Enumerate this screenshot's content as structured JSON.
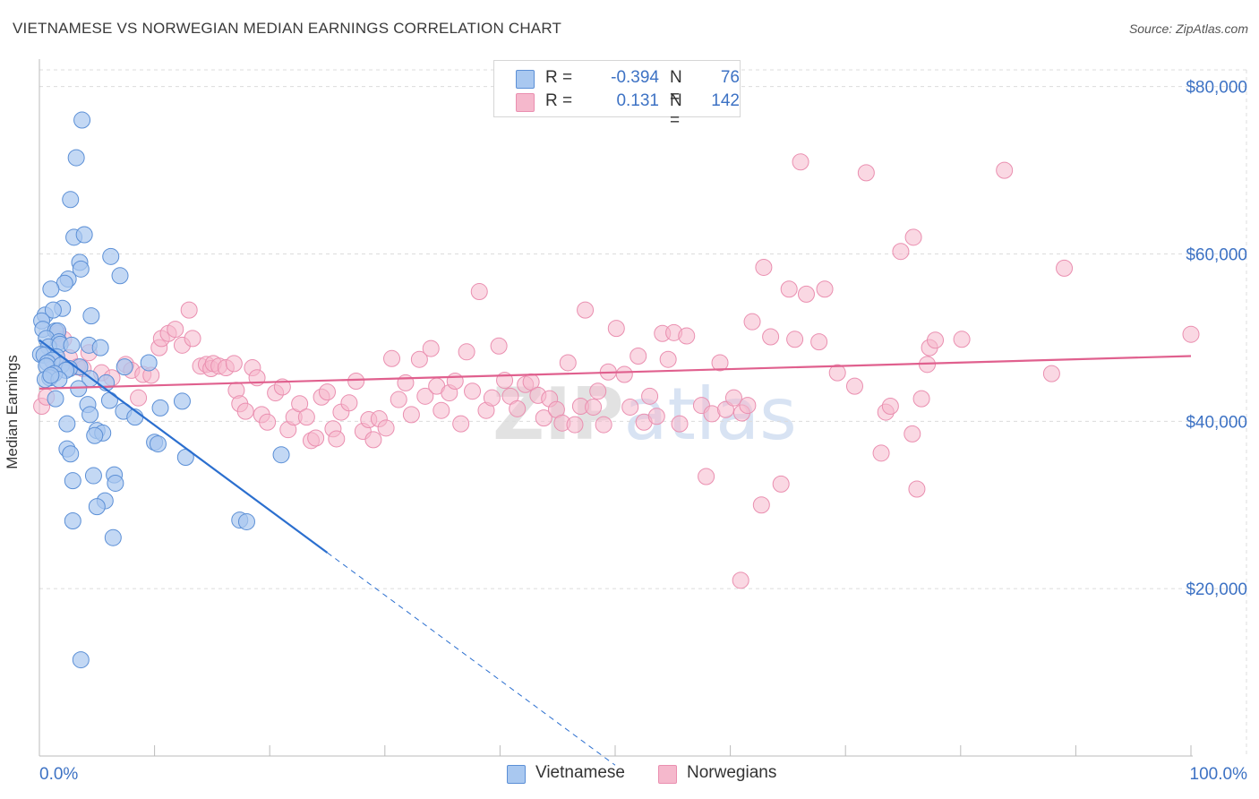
{
  "title": "VIETNAMESE VS NORWEGIAN MEDIAN EARNINGS CORRELATION CHART",
  "source": "Source: ZipAtlas.com",
  "watermark": "ZIPatlas",
  "legend": {
    "rows": [
      {
        "r_label": "R =",
        "r_value": "-0.394",
        "n_label": "N =",
        "n_value": "76"
      },
      {
        "r_label": "R =",
        "r_value": "0.131",
        "n_label": "N =",
        "n_value": "142"
      }
    ]
  },
  "bottom_legend": [
    "Vietnamese",
    "Norwegians"
  ],
  "colors": {
    "vietnamese_fill": "#a9c8f0",
    "vietnamese_stroke": "#5b8fd6",
    "vietnamese_line": "#2b6fcf",
    "norwegian_fill": "#f5b8cc",
    "norwegian_stroke": "#ea8fb0",
    "norwegian_line": "#e0608e",
    "axis_text": "#3d72c4",
    "grid": "#dcdcdc"
  },
  "chart_data": {
    "type": "scatter",
    "title": "VIETNAMESE VS NORWEGIAN MEDIAN EARNINGS CORRELATION CHART",
    "xlabel": "",
    "ylabel": "Median Earnings",
    "xlim": [
      0,
      100
    ],
    "ylim": [
      0,
      82000
    ],
    "x_tick_labels": [
      "0.0%",
      "100.0%"
    ],
    "y_ticks": [
      20000,
      40000,
      60000,
      80000
    ],
    "y_tick_labels": [
      "$20,000",
      "$40,000",
      "$60,000",
      "$80,000"
    ],
    "grid": true,
    "series": [
      {
        "name": "Vietnamese",
        "r": -0.394,
        "n": 76,
        "trend": {
          "x0": 0,
          "y0": 49700,
          "x1": 25,
          "y1": 24300,
          "dashed_to_x": 50
        },
        "points": [
          [
            3.7,
            76000
          ],
          [
            3.2,
            71500
          ],
          [
            2.7,
            66500
          ],
          [
            3.0,
            62000
          ],
          [
            3.9,
            62300
          ],
          [
            6.2,
            59700
          ],
          [
            3.5,
            59000
          ],
          [
            3.6,
            58200
          ],
          [
            7.0,
            57400
          ],
          [
            2.5,
            57000
          ],
          [
            2.2,
            56500
          ],
          [
            1.0,
            55800
          ],
          [
            0.5,
            52700
          ],
          [
            2.0,
            53500
          ],
          [
            1.2,
            53300
          ],
          [
            4.5,
            52600
          ],
          [
            0.2,
            52000
          ],
          [
            0.3,
            51000
          ],
          [
            1.4,
            50800
          ],
          [
            1.6,
            50800
          ],
          [
            0.6,
            49900
          ],
          [
            1.7,
            49500
          ],
          [
            0.8,
            48900
          ],
          [
            1.8,
            49200
          ],
          [
            2.8,
            49100
          ],
          [
            4.3,
            49100
          ],
          [
            5.3,
            48800
          ],
          [
            0.1,
            48000
          ],
          [
            0.4,
            47900
          ],
          [
            1.5,
            47700
          ],
          [
            1.1,
            47300
          ],
          [
            0.7,
            47000
          ],
          [
            1.9,
            46700
          ],
          [
            0.6,
            46600
          ],
          [
            3.5,
            46500
          ],
          [
            2.6,
            46300
          ],
          [
            7.4,
            46500
          ],
          [
            2.3,
            46100
          ],
          [
            1.3,
            45700
          ],
          [
            0.9,
            45200
          ],
          [
            0.5,
            45000
          ],
          [
            1.7,
            45000
          ],
          [
            4.4,
            45100
          ],
          [
            5.8,
            44600
          ],
          [
            3.4,
            43900
          ],
          [
            9.5,
            47000
          ],
          [
            1.4,
            42700
          ],
          [
            6.1,
            42500
          ],
          [
            4.2,
            42000
          ],
          [
            12.4,
            42400
          ],
          [
            10.5,
            41600
          ],
          [
            7.3,
            41200
          ],
          [
            4.4,
            40800
          ],
          [
            8.3,
            40500
          ],
          [
            2.4,
            39700
          ],
          [
            5.0,
            38900
          ],
          [
            5.5,
            38600
          ],
          [
            4.8,
            38300
          ],
          [
            10.0,
            37500
          ],
          [
            10.3,
            37300
          ],
          [
            2.4,
            36700
          ],
          [
            2.7,
            36100
          ],
          [
            12.7,
            35700
          ],
          [
            21.0,
            36000
          ],
          [
            6.5,
            33600
          ],
          [
            4.7,
            33500
          ],
          [
            6.6,
            32600
          ],
          [
            2.9,
            32900
          ],
          [
            5.7,
            30500
          ],
          [
            5.0,
            29800
          ],
          [
            2.9,
            28100
          ],
          [
            17.4,
            28200
          ],
          [
            18.0,
            28000
          ],
          [
            6.4,
            26100
          ],
          [
            3.6,
            11500
          ],
          [
            1.0,
            45500
          ]
        ]
      },
      {
        "name": "Norwegians",
        "r": 0.131,
        "n": 142,
        "trend": {
          "x0": 0,
          "y0": 43900,
          "x1": 100,
          "y1": 47800
        },
        "points": [
          [
            0.2,
            41800
          ],
          [
            0.6,
            42900
          ],
          [
            1.3,
            46800
          ],
          [
            1.6,
            50500
          ],
          [
            2.1,
            49800
          ],
          [
            2.6,
            47600
          ],
          [
            3.3,
            46500
          ],
          [
            3.8,
            46300
          ],
          [
            4.3,
            48200
          ],
          [
            5.4,
            45800
          ],
          [
            6.3,
            45200
          ],
          [
            7.5,
            46800
          ],
          [
            8.0,
            46100
          ],
          [
            8.6,
            42800
          ],
          [
            9.0,
            45600
          ],
          [
            9.7,
            45500
          ],
          [
            10.4,
            48800
          ],
          [
            10.6,
            49900
          ],
          [
            11.2,
            50500
          ],
          [
            11.8,
            51000
          ],
          [
            12.4,
            49100
          ],
          [
            13.0,
            53300
          ],
          [
            13.3,
            49900
          ],
          [
            14.0,
            46600
          ],
          [
            14.5,
            46800
          ],
          [
            14.9,
            46300
          ],
          [
            15.1,
            46900
          ],
          [
            15.6,
            46600
          ],
          [
            16.2,
            46400
          ],
          [
            16.9,
            46900
          ],
          [
            17.1,
            43700
          ],
          [
            17.4,
            42100
          ],
          [
            17.9,
            41200
          ],
          [
            18.5,
            46400
          ],
          [
            18.9,
            45200
          ],
          [
            19.3,
            40800
          ],
          [
            19.8,
            39900
          ],
          [
            20.5,
            43400
          ],
          [
            21.1,
            44100
          ],
          [
            21.6,
            39000
          ],
          [
            22.1,
            40500
          ],
          [
            22.6,
            42100
          ],
          [
            23.2,
            40500
          ],
          [
            23.6,
            37700
          ],
          [
            24.0,
            38000
          ],
          [
            24.5,
            42900
          ],
          [
            25.0,
            43500
          ],
          [
            25.5,
            39100
          ],
          [
            25.8,
            37900
          ],
          [
            26.2,
            41100
          ],
          [
            26.9,
            42200
          ],
          [
            27.5,
            44800
          ],
          [
            28.1,
            38800
          ],
          [
            28.6,
            40200
          ],
          [
            29.0,
            37800
          ],
          [
            29.5,
            40300
          ],
          [
            30.1,
            39200
          ],
          [
            30.6,
            47500
          ],
          [
            31.2,
            42600
          ],
          [
            31.8,
            44600
          ],
          [
            32.3,
            40800
          ],
          [
            33.0,
            47400
          ],
          [
            33.5,
            43000
          ],
          [
            34.0,
            48700
          ],
          [
            34.5,
            44200
          ],
          [
            34.9,
            41300
          ],
          [
            35.6,
            43400
          ],
          [
            36.1,
            44800
          ],
          [
            36.6,
            39700
          ],
          [
            37.1,
            48300
          ],
          [
            37.6,
            43600
          ],
          [
            38.2,
            55500
          ],
          [
            38.8,
            41300
          ],
          [
            39.3,
            42800
          ],
          [
            39.9,
            49000
          ],
          [
            40.4,
            44900
          ],
          [
            40.9,
            43000
          ],
          [
            41.5,
            41500
          ],
          [
            42.2,
            44400
          ],
          [
            42.7,
            44700
          ],
          [
            43.3,
            43100
          ],
          [
            43.8,
            40400
          ],
          [
            44.3,
            42700
          ],
          [
            44.9,
            41400
          ],
          [
            45.4,
            39800
          ],
          [
            45.9,
            47000
          ],
          [
            46.5,
            39600
          ],
          [
            47.0,
            41800
          ],
          [
            47.4,
            53300
          ],
          [
            48.1,
            41700
          ],
          [
            48.5,
            43600
          ],
          [
            49.0,
            39600
          ],
          [
            49.4,
            45900
          ],
          [
            50.1,
            51100
          ],
          [
            50.8,
            45600
          ],
          [
            51.3,
            41700
          ],
          [
            52.0,
            47800
          ],
          [
            52.5,
            39900
          ],
          [
            53.0,
            43000
          ],
          [
            53.6,
            40600
          ],
          [
            54.1,
            50500
          ],
          [
            54.6,
            47400
          ],
          [
            55.1,
            50600
          ],
          [
            55.6,
            39700
          ],
          [
            56.2,
            50200
          ],
          [
            57.5,
            41900
          ],
          [
            57.9,
            33400
          ],
          [
            58.4,
            40900
          ],
          [
            59.1,
            47000
          ],
          [
            59.6,
            41400
          ],
          [
            60.3,
            42800
          ],
          [
            61.0,
            41000
          ],
          [
            61.5,
            41900
          ],
          [
            61.9,
            51900
          ],
          [
            62.7,
            30000
          ],
          [
            62.9,
            58400
          ],
          [
            63.5,
            50100
          ],
          [
            64.4,
            32500
          ],
          [
            65.1,
            55800
          ],
          [
            65.6,
            49800
          ],
          [
            66.1,
            71000
          ],
          [
            66.6,
            55200
          ],
          [
            67.7,
            49500
          ],
          [
            68.2,
            55800
          ],
          [
            69.3,
            45800
          ],
          [
            70.8,
            44200
          ],
          [
            71.8,
            69700
          ],
          [
            73.1,
            36200
          ],
          [
            73.5,
            41100
          ],
          [
            73.9,
            41800
          ],
          [
            74.8,
            60300
          ],
          [
            75.9,
            62000
          ],
          [
            75.8,
            38500
          ],
          [
            76.6,
            42700
          ],
          [
            76.2,
            31900
          ],
          [
            77.1,
            46800
          ],
          [
            77.3,
            48800
          ],
          [
            77.8,
            49700
          ],
          [
            80.1,
            49800
          ],
          [
            83.8,
            70000
          ],
          [
            87.9,
            45700
          ],
          [
            89.0,
            58300
          ],
          [
            100.0,
            50400
          ],
          [
            60.9,
            21000
          ]
        ]
      }
    ]
  }
}
